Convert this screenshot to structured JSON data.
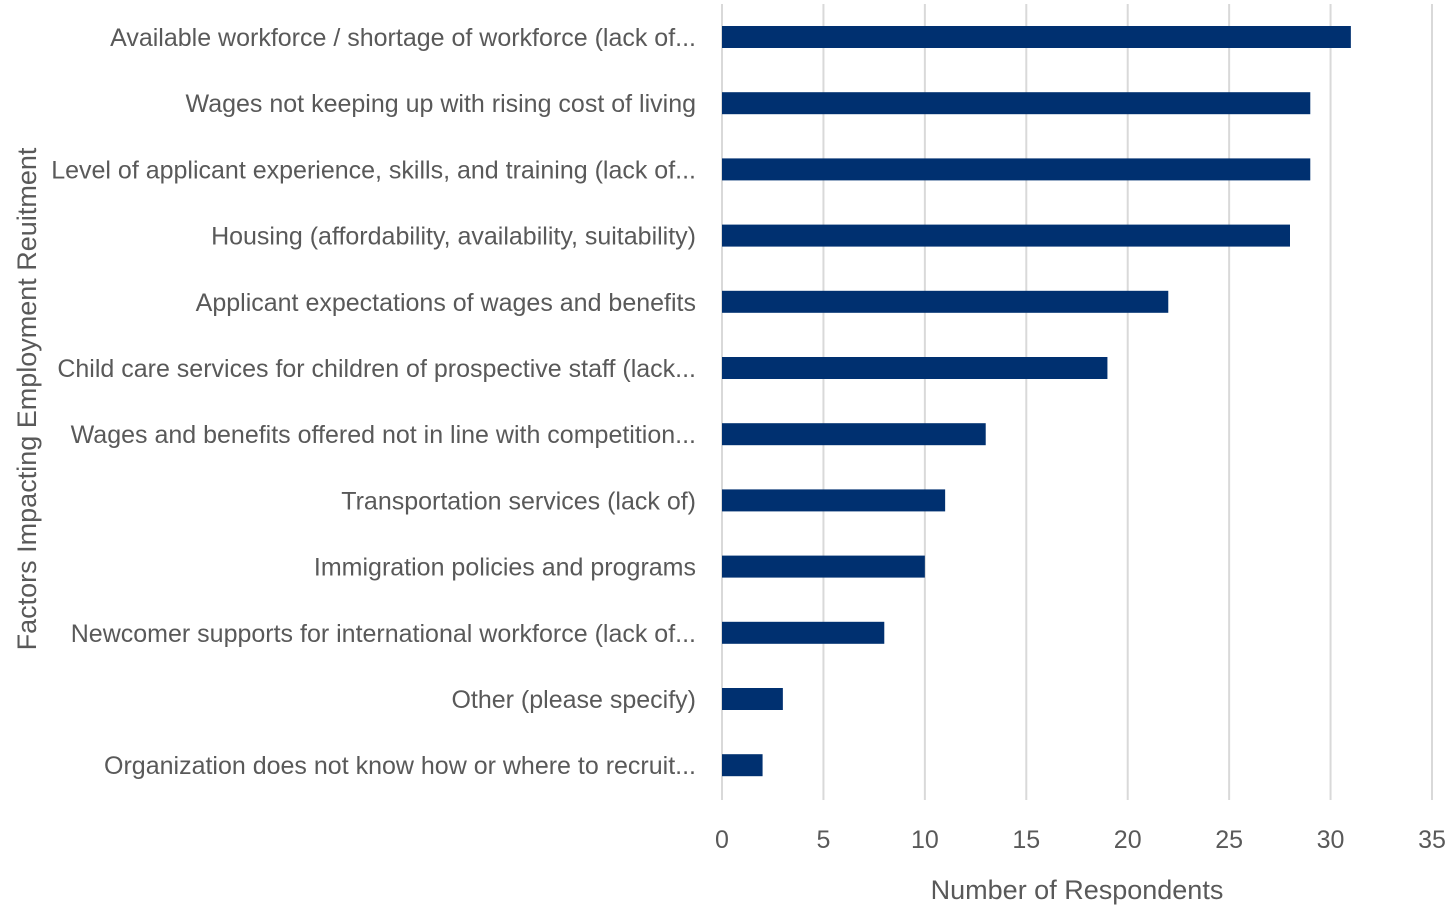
{
  "chart_data": {
    "type": "bar",
    "orientation": "horizontal",
    "categories": [
      "Available workforce / shortage of workforce (lack of...",
      "Wages not keeping up with rising cost of living",
      "Level of applicant experience, skills, and training (lack of...",
      "Housing (affordability, availability, suitability)",
      "Applicant expectations of wages and benefits",
      "Child care services for children of prospective staff (lack...",
      "Wages and benefits offered not in line with competition...",
      "Transportation services (lack of)",
      "Immigration policies and programs",
      "Newcomer supports for international workforce (lack of...",
      "Other (please specify)",
      "Organization does not know how or where to recruit..."
    ],
    "values": [
      31,
      29,
      29,
      28,
      22,
      19,
      13,
      11,
      10,
      8,
      3,
      2
    ],
    "xlabel": "Number of Respondents",
    "ylabel": "Factors Impacting Employment Reuitment",
    "xlim": [
      0,
      35
    ],
    "xticks": [
      0,
      5,
      10,
      15,
      20,
      25,
      30,
      35
    ],
    "grid": "vertical",
    "legend": "none",
    "bar_color": "#003070",
    "grid_color": "#d9d9d9",
    "text_color": "#595959"
  }
}
